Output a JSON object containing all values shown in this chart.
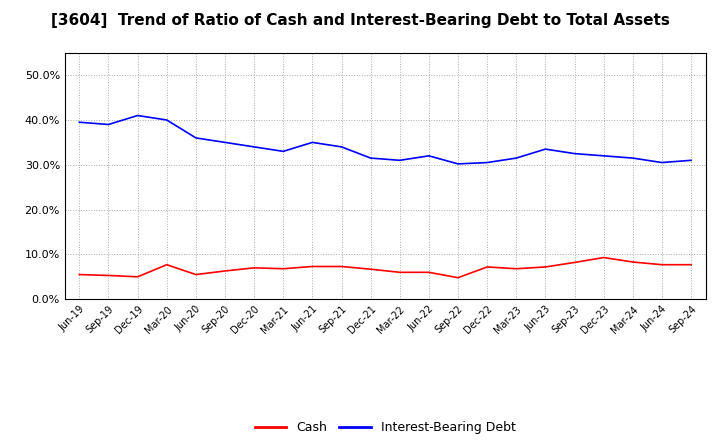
{
  "title": "[3604]  Trend of Ratio of Cash and Interest-Bearing Debt to Total Assets",
  "labels": [
    "Jun-19",
    "Sep-19",
    "Dec-19",
    "Mar-20",
    "Jun-20",
    "Sep-20",
    "Dec-20",
    "Mar-21",
    "Jun-21",
    "Sep-21",
    "Dec-21",
    "Mar-22",
    "Jun-22",
    "Sep-22",
    "Dec-22",
    "Mar-23",
    "Jun-23",
    "Sep-23",
    "Dec-23",
    "Mar-24",
    "Jun-24",
    "Sep-24"
  ],
  "cash": [
    0.055,
    0.053,
    0.05,
    0.077,
    0.055,
    0.063,
    0.07,
    0.068,
    0.073,
    0.073,
    0.067,
    0.06,
    0.06,
    0.048,
    0.072,
    0.068,
    0.072,
    0.082,
    0.093,
    0.083,
    0.077,
    0.077
  ],
  "debt": [
    0.395,
    0.39,
    0.41,
    0.4,
    0.36,
    0.35,
    0.34,
    0.33,
    0.35,
    0.34,
    0.315,
    0.31,
    0.32,
    0.302,
    0.305,
    0.315,
    0.335,
    0.325,
    0.32,
    0.315,
    0.305,
    0.31
  ],
  "cash_color": "#ff0000",
  "debt_color": "#0000ff",
  "ylim": [
    0.0,
    0.55
  ],
  "yticks": [
    0.0,
    0.1,
    0.2,
    0.3,
    0.4,
    0.5
  ],
  "bg_color": "#ffffff",
  "plot_bg_color": "#ffffff",
  "grid_color": "#aaaaaa",
  "title_fontsize": 11,
  "legend_labels": [
    "Cash",
    "Interest-Bearing Debt"
  ]
}
